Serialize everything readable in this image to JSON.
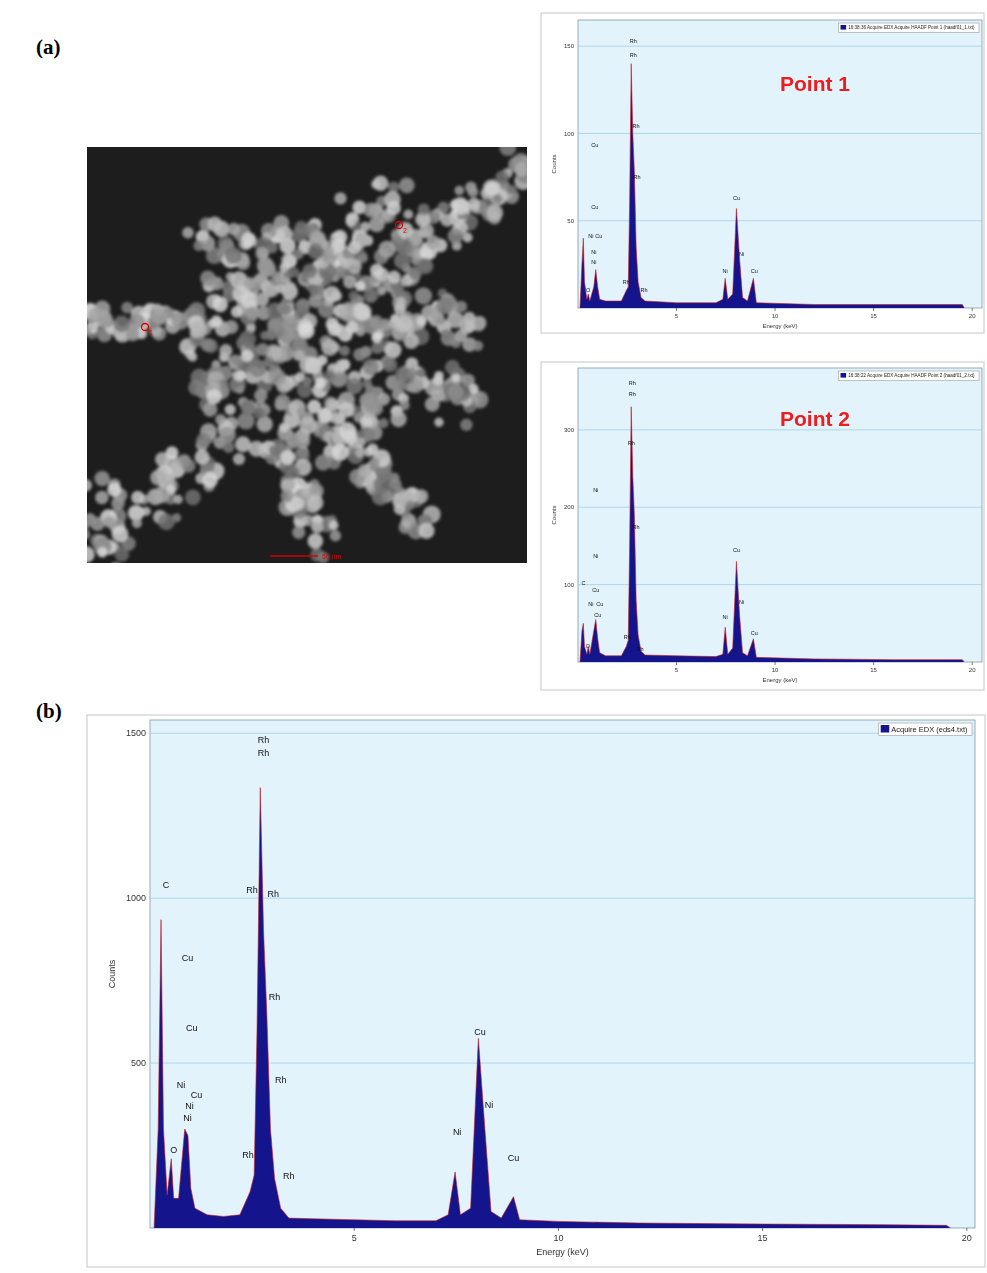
{
  "panel_labels": [
    "(a)",
    "(b)"
  ],
  "image": {
    "scale_bar": "50 nm",
    "points": [
      "1",
      "2"
    ]
  },
  "chart_data": [
    {
      "type": "area",
      "title": "Point 1",
      "x_label": "Energy (keV)",
      "y_label": "Counts",
      "x": [
        0.1,
        0.2,
        0.27,
        0.33,
        0.45,
        0.52,
        0.6,
        0.8,
        0.9,
        1.0,
        1.1,
        1.4,
        2.2,
        2.45,
        2.55,
        2.62,
        2.7,
        2.78,
        2.86,
        2.95,
        3.05,
        3.2,
        3.4,
        5,
        7,
        7.35,
        7.47,
        7.6,
        7.85,
        8.04,
        8.2,
        8.35,
        8.6,
        8.9,
        9.05,
        12,
        16,
        19.5,
        19.6
      ],
      "series": [
        {
          "name": "16:38:36 Acquire EDX Acquire HAADF Point 1 (haadf01_1.txt)",
          "color": "#14148c",
          "values": [
            0,
            25,
            40,
            15,
            5,
            8,
            4,
            12,
            22,
            12,
            5,
            4,
            4,
            10,
            12,
            60,
            140,
            100,
            78,
            35,
            15,
            6,
            4,
            3,
            3,
            5,
            17,
            5,
            8,
            57,
            28,
            6,
            4,
            17,
            3,
            2,
            2,
            2,
            0
          ]
        }
      ],
      "xlim": [
        0,
        20.5
      ],
      "ylim": [
        0,
        165
      ],
      "xticks": [
        5,
        10,
        15,
        20
      ],
      "yticks": [
        50,
        100,
        150
      ],
      "grid": true,
      "legend": "top-right",
      "annotations": [
        {
          "text": "Rh",
          "x": 2.8,
          "y": 152
        },
        {
          "text": "Rh",
          "x": 2.8,
          "y": 144
        },
        {
          "text": "Rh",
          "x": 2.95,
          "y": 103
        },
        {
          "text": "Rh",
          "x": 3.0,
          "y": 74
        },
        {
          "text": "Rh",
          "x": 2.45,
          "y": 14
        },
        {
          "text": "Rh",
          "x": 3.35,
          "y": 9
        },
        {
          "text": "Cu",
          "x": 0.85,
          "y": 92
        },
        {
          "text": "Cu",
          "x": 0.85,
          "y": 57
        },
        {
          "text": "Ni",
          "x": 0.65,
          "y": 40
        },
        {
          "text": "Cu",
          "x": 1.05,
          "y": 40
        },
        {
          "text": "Ni",
          "x": 0.8,
          "y": 31
        },
        {
          "text": "Ni",
          "x": 0.8,
          "y": 25
        },
        {
          "text": "O",
          "x": 0.52,
          "y": 9
        },
        {
          "text": "Ni",
          "x": 7.47,
          "y": 20
        },
        {
          "text": "Cu",
          "x": 8.04,
          "y": 62
        },
        {
          "text": "Ni",
          "x": 8.3,
          "y": 30
        },
        {
          "text": "Cu",
          "x": 8.95,
          "y": 20
        }
      ]
    },
    {
      "type": "area",
      "title": "Point 2",
      "x_label": "Energy (keV)",
      "y_label": "Counts",
      "x": [
        0.1,
        0.2,
        0.27,
        0.33,
        0.45,
        0.52,
        0.6,
        0.8,
        0.9,
        1.0,
        1.1,
        1.4,
        2.2,
        2.45,
        2.55,
        2.62,
        2.7,
        2.78,
        2.86,
        2.95,
        3.05,
        3.2,
        3.4,
        5,
        7,
        7.35,
        7.47,
        7.6,
        7.85,
        8.04,
        8.2,
        8.35,
        8.6,
        8.9,
        9.05,
        12,
        16,
        19.5,
        19.6
      ],
      "series": [
        {
          "name": "16:38:22 Acquire EDX Acquire HAADF Point 2 (haadf01_2.txt)",
          "color": "#14148c",
          "values": [
            0,
            40,
            50,
            20,
            10,
            20,
            10,
            40,
            55,
            30,
            12,
            8,
            8,
            20,
            28,
            150,
            330,
            240,
            190,
            80,
            35,
            14,
            9,
            8,
            7,
            10,
            45,
            10,
            18,
            130,
            60,
            12,
            8,
            30,
            6,
            4,
            3,
            3,
            0
          ]
        }
      ],
      "xlim": [
        0,
        20.5
      ],
      "ylim": [
        0,
        380
      ],
      "xticks": [
        5,
        10,
        15,
        20
      ],
      "yticks": [
        100,
        200,
        300
      ],
      "grid": true,
      "legend": "top-right",
      "annotations": [
        {
          "text": "Rh",
          "x": 2.75,
          "y": 358
        },
        {
          "text": "Rh",
          "x": 2.75,
          "y": 344
        },
        {
          "text": "Rh",
          "x": 2.7,
          "y": 280
        },
        {
          "text": "Rh",
          "x": 2.95,
          "y": 172
        },
        {
          "text": "Rh",
          "x": 2.5,
          "y": 30
        },
        {
          "text": "Rh",
          "x": 3.15,
          "y": 14
        },
        {
          "text": "C",
          "x": 0.28,
          "y": 100
        },
        {
          "text": "Ni",
          "x": 0.9,
          "y": 220
        },
        {
          "text": "Ni",
          "x": 0.9,
          "y": 135
        },
        {
          "text": "Cu",
          "x": 0.9,
          "y": 90
        },
        {
          "text": "Ni",
          "x": 0.65,
          "y": 73
        },
        {
          "text": "Cu",
          "x": 1.1,
          "y": 73
        },
        {
          "text": "Cu",
          "x": 1.0,
          "y": 58
        },
        {
          "text": "O",
          "x": 0.5,
          "y": 18
        },
        {
          "text": "Ni",
          "x": 7.47,
          "y": 55
        },
        {
          "text": "Cu",
          "x": 8.04,
          "y": 142
        },
        {
          "text": "Ni",
          "x": 8.3,
          "y": 75
        },
        {
          "text": "Cu",
          "x": 8.95,
          "y": 35
        }
      ]
    },
    {
      "type": "area",
      "x_label": "Energy (keV)",
      "y_label": "Counts",
      "x": [
        0.1,
        0.2,
        0.27,
        0.33,
        0.42,
        0.52,
        0.58,
        0.7,
        0.85,
        0.93,
        1.0,
        1.1,
        1.25,
        1.4,
        1.8,
        2.2,
        2.45,
        2.55,
        2.62,
        2.7,
        2.78,
        2.86,
        2.95,
        3.05,
        3.2,
        3.4,
        4,
        5,
        6,
        7,
        7.3,
        7.47,
        7.6,
        7.85,
        8.04,
        8.2,
        8.35,
        8.6,
        8.9,
        9.05,
        10,
        12,
        15,
        18,
        19.5,
        19.6
      ],
      "series": [
        {
          "name": "Acquire EDX (eds4.txt)",
          "color": "#14148c",
          "values": [
            0,
            300,
            935,
            300,
            100,
            210,
            90,
            90,
            300,
            280,
            120,
            60,
            50,
            40,
            35,
            40,
            110,
            160,
            600,
            1335,
            900,
            650,
            300,
            150,
            60,
            30,
            28,
            25,
            22,
            22,
            40,
            170,
            40,
            60,
            575,
            300,
            50,
            30,
            95,
            25,
            20,
            15,
            12,
            10,
            8,
            0
          ]
        }
      ],
      "xlim": [
        0,
        20.2
      ],
      "ylim": [
        0,
        1540
      ],
      "xticks": [
        5,
        10,
        15,
        20
      ],
      "yticks": [
        500,
        1000,
        1500
      ],
      "grid": true,
      "legend": "top-right",
      "annotations": [
        {
          "text": "Rh",
          "x": 2.78,
          "y": 1470
        },
        {
          "text": "Rh",
          "x": 2.78,
          "y": 1432
        },
        {
          "text": "Rh",
          "x": 2.5,
          "y": 1017
        },
        {
          "text": "Rh",
          "x": 3.02,
          "y": 1003
        },
        {
          "text": "Rh",
          "x": 3.05,
          "y": 690
        },
        {
          "text": "Rh",
          "x": 3.2,
          "y": 440
        },
        {
          "text": "Rh",
          "x": 2.4,
          "y": 212
        },
        {
          "text": "Rh",
          "x": 3.4,
          "y": 150
        },
        {
          "text": "C",
          "x": 0.39,
          "y": 1032
        },
        {
          "text": "Cu",
          "x": 0.92,
          "y": 808
        },
        {
          "text": "Cu",
          "x": 1.02,
          "y": 596
        },
        {
          "text": "Ni",
          "x": 0.76,
          "y": 425
        },
        {
          "text": "Cu",
          "x": 1.14,
          "y": 395
        },
        {
          "text": "Ni",
          "x": 0.97,
          "y": 362
        },
        {
          "text": "Ni",
          "x": 0.92,
          "y": 325
        },
        {
          "text": "O",
          "x": 0.58,
          "y": 227
        },
        {
          "text": "Cu",
          "x": 8.08,
          "y": 584
        },
        {
          "text": "Ni",
          "x": 8.3,
          "y": 363
        },
        {
          "text": "Ni",
          "x": 7.52,
          "y": 282
        },
        {
          "text": "Cu",
          "x": 8.9,
          "y": 203
        }
      ]
    }
  ]
}
